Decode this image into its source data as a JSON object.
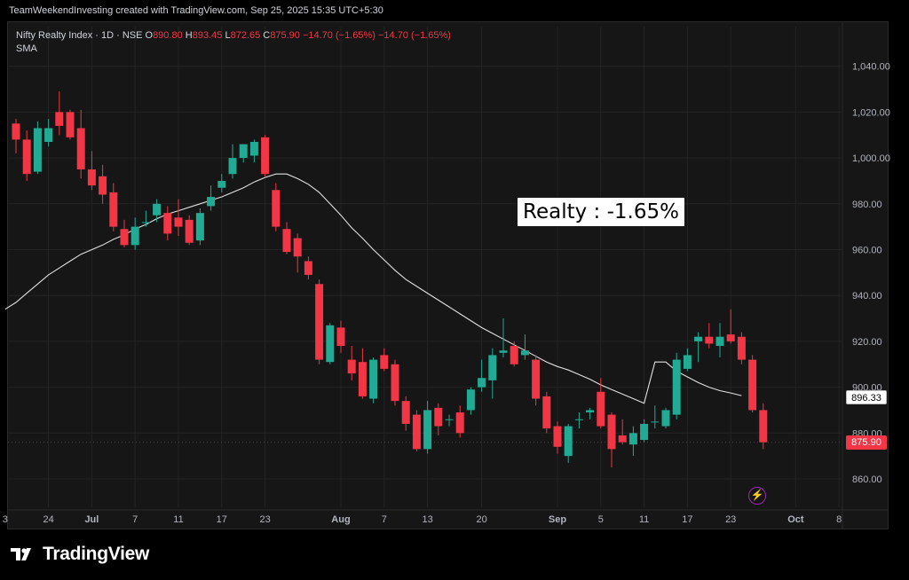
{
  "header": {
    "attribution": "TeamWeekendInvesting created with TradingView.com, Sep 25, 2025 15:35 UTC+5:30"
  },
  "legend": {
    "symbol": "Nifty Realty Index · 1D · NSE",
    "o_label": "O",
    "o_value": "890.80",
    "h_label": "H",
    "h_value": "893.45",
    "l_label": "L",
    "l_value": "872.65",
    "c_label": "C",
    "c_value": "875.90",
    "change": "−14.70 (−1.65%)",
    "change2": "−14.70 (−1.65%)",
    "sma_label": "SMA"
  },
  "annotation": "Realty : -1.65%",
  "footer": {
    "brand": "TradingView"
  },
  "colors": {
    "up": "#22ab94",
    "down": "#f23645",
    "sma": "#e0e0e0",
    "grid": "#232323",
    "bg": "#161616"
  },
  "chart_data": {
    "type": "candlestick",
    "ylim": [
      850,
      1050
    ],
    "yticks": [
      860,
      880,
      900,
      920,
      940,
      960,
      980,
      1000,
      1020,
      1040
    ],
    "ytick_labels": [
      "860.00",
      "880.00",
      "900.00",
      "920.00",
      "940.00",
      "960.00",
      "980.00",
      "1,000.00",
      "1,020.00",
      "1,040.00"
    ],
    "price_tags": {
      "sma": "896.33",
      "last": "875.90"
    },
    "xticks": [
      {
        "i": -1,
        "label": "3"
      },
      {
        "i": 3,
        "label": "24"
      },
      {
        "i": 7,
        "label": "Jul"
      },
      {
        "i": 11,
        "label": "7"
      },
      {
        "i": 15,
        "label": "11"
      },
      {
        "i": 19,
        "label": "17"
      },
      {
        "i": 23,
        "label": "23"
      },
      {
        "i": 30,
        "label": "Aug"
      },
      {
        "i": 34,
        "label": "7"
      },
      {
        "i": 38,
        "label": "13"
      },
      {
        "i": 43,
        "label": "20"
      },
      {
        "i": 50,
        "label": "Sep"
      },
      {
        "i": 54,
        "label": "5"
      },
      {
        "i": 58,
        "label": "11"
      },
      {
        "i": 62,
        "label": "17"
      },
      {
        "i": 66,
        "label": "23"
      },
      {
        "i": 72,
        "label": "Oct"
      },
      {
        "i": 76,
        "label": "8"
      }
    ],
    "candles": [
      {
        "o": 1015,
        "h": 1017,
        "l": 1002,
        "c": 1008
      },
      {
        "o": 1008,
        "h": 1012,
        "l": 990,
        "c": 993
      },
      {
        "o": 994,
        "h": 1016,
        "l": 993,
        "c": 1013
      },
      {
        "o": 1007,
        "h": 1017,
        "l": 1005,
        "c": 1013
      },
      {
        "o": 1020,
        "h": 1029,
        "l": 1010,
        "c": 1014
      },
      {
        "o": 1020,
        "h": 1021,
        "l": 1008,
        "c": 1009
      },
      {
        "o": 1013,
        "h": 1021,
        "l": 991,
        "c": 995
      },
      {
        "o": 995,
        "h": 1003,
        "l": 986,
        "c": 988
      },
      {
        "o": 992,
        "h": 997,
        "l": 980,
        "c": 984
      },
      {
        "o": 985,
        "h": 989,
        "l": 968,
        "c": 970
      },
      {
        "o": 969,
        "h": 973,
        "l": 961,
        "c": 962
      },
      {
        "o": 962,
        "h": 974,
        "l": 960,
        "c": 970
      },
      {
        "o": 972,
        "h": 977,
        "l": 970,
        "c": 972
      },
      {
        "o": 975,
        "h": 982,
        "l": 972,
        "c": 980
      },
      {
        "o": 976,
        "h": 979,
        "l": 964,
        "c": 967
      },
      {
        "o": 974,
        "h": 982,
        "l": 966,
        "c": 970
      },
      {
        "o": 973,
        "h": 975,
        "l": 962,
        "c": 963
      },
      {
        "o": 964,
        "h": 978,
        "l": 962,
        "c": 976
      },
      {
        "o": 979,
        "h": 988,
        "l": 977,
        "c": 983
      },
      {
        "o": 987,
        "h": 993,
        "l": 985,
        "c": 990
      },
      {
        "o": 993,
        "h": 1006,
        "l": 991,
        "c": 1000
      },
      {
        "o": 1000,
        "h": 1006,
        "l": 998,
        "c": 1006
      },
      {
        "o": 1001,
        "h": 1008,
        "l": 998,
        "c": 1007
      },
      {
        "o": 1009,
        "h": 1010,
        "l": 992,
        "c": 993
      },
      {
        "o": 986,
        "h": 989,
        "l": 968,
        "c": 970
      },
      {
        "o": 969,
        "h": 972,
        "l": 958,
        "c": 959
      },
      {
        "o": 965,
        "h": 967,
        "l": 950,
        "c": 957
      },
      {
        "o": 955,
        "h": 957,
        "l": 947,
        "c": 949
      },
      {
        "o": 945,
        "h": 947,
        "l": 910,
        "c": 912
      },
      {
        "o": 911,
        "h": 928,
        "l": 910,
        "c": 927
      },
      {
        "o": 926,
        "h": 929,
        "l": 915,
        "c": 918
      },
      {
        "o": 912,
        "h": 918,
        "l": 903,
        "c": 906
      },
      {
        "o": 911,
        "h": 917,
        "l": 895,
        "c": 896
      },
      {
        "o": 895,
        "h": 913,
        "l": 893,
        "c": 912
      },
      {
        "o": 914,
        "h": 917,
        "l": 907,
        "c": 908
      },
      {
        "o": 910,
        "h": 912,
        "l": 892,
        "c": 894
      },
      {
        "o": 894,
        "h": 896,
        "l": 881,
        "c": 884
      },
      {
        "o": 888,
        "h": 890,
        "l": 872,
        "c": 873
      },
      {
        "o": 873,
        "h": 894,
        "l": 871,
        "c": 890
      },
      {
        "o": 891,
        "h": 893,
        "l": 879,
        "c": 883
      },
      {
        "o": 886,
        "h": 888,
        "l": 883,
        "c": 886
      },
      {
        "o": 889,
        "h": 892,
        "l": 878,
        "c": 880
      },
      {
        "o": 890,
        "h": 900,
        "l": 888,
        "c": 899
      },
      {
        "o": 900,
        "h": 912,
        "l": 898,
        "c": 904
      },
      {
        "o": 903,
        "h": 917,
        "l": 895,
        "c": 914
      },
      {
        "o": 915,
        "h": 930,
        "l": 913,
        "c": 916
      },
      {
        "o": 918,
        "h": 920,
        "l": 909,
        "c": 910
      },
      {
        "o": 914,
        "h": 923,
        "l": 912,
        "c": 916
      },
      {
        "o": 912,
        "h": 914,
        "l": 892,
        "c": 895
      },
      {
        "o": 896,
        "h": 898,
        "l": 880,
        "c": 882
      },
      {
        "o": 883,
        "h": 885,
        "l": 871,
        "c": 874
      },
      {
        "o": 870,
        "h": 884,
        "l": 867,
        "c": 883
      },
      {
        "o": 886,
        "h": 889,
        "l": 882,
        "c": 886
      },
      {
        "o": 889,
        "h": 891,
        "l": 886,
        "c": 890
      },
      {
        "o": 898,
        "h": 904,
        "l": 882,
        "c": 883
      },
      {
        "o": 888,
        "h": 889,
        "l": 865,
        "c": 873
      },
      {
        "o": 879,
        "h": 886,
        "l": 875,
        "c": 876
      },
      {
        "o": 875,
        "h": 883,
        "l": 870,
        "c": 880
      },
      {
        "o": 877,
        "h": 886,
        "l": 876,
        "c": 884
      },
      {
        "o": 885,
        "h": 892,
        "l": 882,
        "c": 885
      },
      {
        "o": 883,
        "h": 891,
        "l": 882,
        "c": 890
      },
      {
        "o": 888,
        "h": 915,
        "l": 886,
        "c": 912
      },
      {
        "o": 908,
        "h": 917,
        "l": 907,
        "c": 914
      },
      {
        "o": 920,
        "h": 924,
        "l": 911,
        "c": 922
      },
      {
        "o": 922,
        "h": 928,
        "l": 917,
        "c": 919
      },
      {
        "o": 918,
        "h": 928,
        "l": 913,
        "c": 922
      },
      {
        "o": 923,
        "h": 934,
        "l": 919,
        "c": 920
      },
      {
        "o": 922,
        "h": 924,
        "l": 910,
        "c": 912
      },
      {
        "o": 912,
        "h": 914,
        "l": 889,
        "c": 890
      },
      {
        "o": 890,
        "h": 893,
        "l": 873,
        "c": 876
      }
    ],
    "sma": [
      [
        -1,
        934
      ],
      [
        0,
        937
      ],
      [
        1,
        941
      ],
      [
        2,
        945
      ],
      [
        3,
        949
      ],
      [
        4,
        952
      ],
      [
        5,
        955
      ],
      [
        6,
        958
      ],
      [
        7,
        960
      ],
      [
        8,
        962
      ],
      [
        9,
        964.5
      ],
      [
        10,
        966.5
      ],
      [
        11,
        969
      ],
      [
        12,
        971
      ],
      [
        13,
        973.5
      ],
      [
        14,
        975.5
      ],
      [
        15,
        977
      ],
      [
        16,
        978.5
      ],
      [
        17,
        980
      ],
      [
        18,
        981.5
      ],
      [
        19,
        983
      ],
      [
        20,
        985
      ],
      [
        21,
        987
      ],
      [
        22,
        989.5
      ],
      [
        23,
        991.5
      ],
      [
        24,
        993
      ],
      [
        25,
        993
      ],
      [
        26,
        991
      ],
      [
        27,
        988.5
      ],
      [
        28,
        985
      ],
      [
        29,
        980
      ],
      [
        30,
        975
      ],
      [
        31,
        969.5
      ],
      [
        32,
        965
      ],
      [
        33,
        960
      ],
      [
        34,
        955.5
      ],
      [
        35,
        951
      ],
      [
        36,
        947
      ],
      [
        37,
        944
      ],
      [
        38,
        941
      ],
      [
        39,
        938
      ],
      [
        40,
        935
      ],
      [
        41,
        932
      ],
      [
        42,
        929
      ],
      [
        43,
        926
      ],
      [
        44,
        923.5
      ],
      [
        45,
        921
      ],
      [
        46,
        918.5
      ],
      [
        47,
        916
      ],
      [
        48,
        913.5
      ],
      [
        49,
        911
      ],
      [
        50,
        909
      ],
      [
        51,
        907.5
      ],
      [
        52,
        905.5
      ],
      [
        53,
        903.5
      ],
      [
        54,
        901
      ],
      [
        55,
        899
      ],
      [
        56,
        897
      ],
      [
        57,
        895
      ],
      [
        58,
        893
      ],
      [
        59,
        911
      ],
      [
        60,
        911
      ],
      [
        61,
        907
      ],
      [
        62,
        904.5
      ],
      [
        63,
        902
      ],
      [
        64,
        900
      ],
      [
        65,
        898.5
      ],
      [
        66,
        897.5
      ],
      [
        67,
        896.33
      ]
    ]
  }
}
